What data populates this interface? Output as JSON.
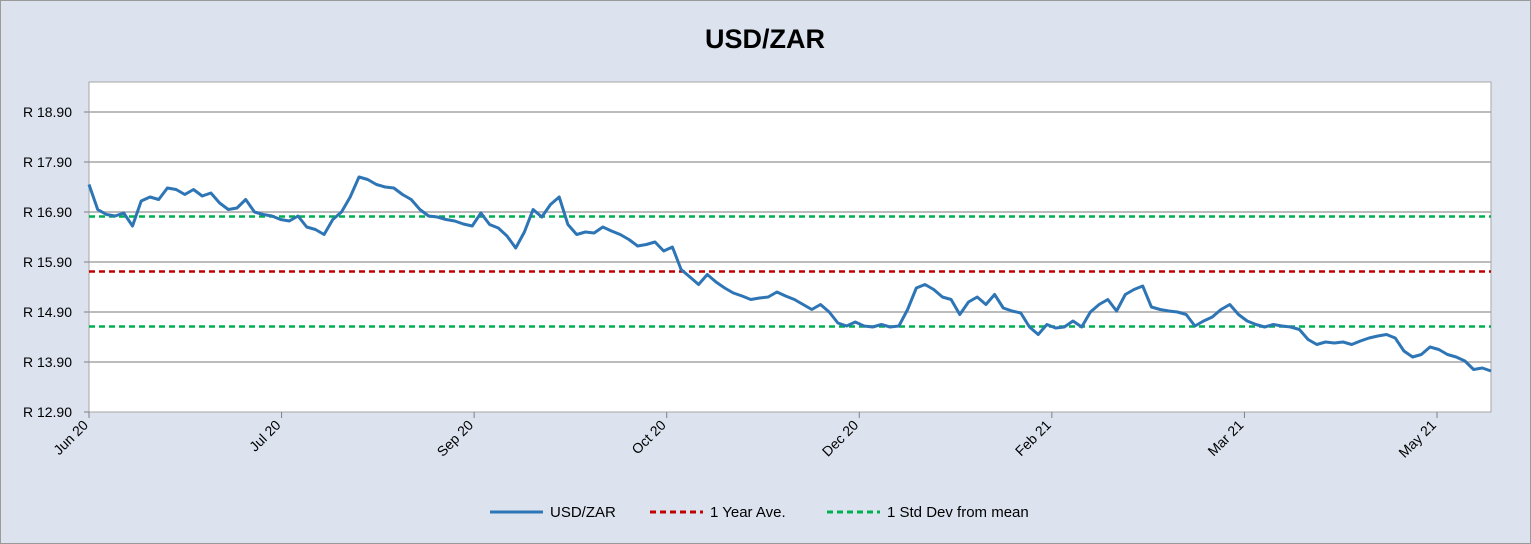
{
  "chart_data": {
    "type": "line",
    "title": "USD/ZAR",
    "xlabel": "",
    "ylabel": "",
    "ylim": [
      12.9,
      18.9
    ],
    "yticks": [
      "R 12.90",
      "R 13.90",
      "R 14.90",
      "R 15.90",
      "R 16.90",
      "R 17.90",
      "R 18.90"
    ],
    "ytick_values": [
      12.9,
      13.9,
      14.9,
      15.9,
      16.9,
      17.9,
      18.9
    ],
    "xticks": [
      "Jun 20",
      "Jul 20",
      "Sep 20",
      "Oct 20",
      "Dec 20",
      "Feb 21",
      "Mar 21",
      "May 21"
    ],
    "grid": "horizontal",
    "legend_position": "bottom",
    "series": [
      {
        "name": "USD/ZAR",
        "color": "#2e75b6",
        "style": "solid",
        "values": [
          17.45,
          16.95,
          16.85,
          16.82,
          16.88,
          16.62,
          17.12,
          17.2,
          17.15,
          17.38,
          17.35,
          17.25,
          17.35,
          17.22,
          17.28,
          17.08,
          16.95,
          16.98,
          17.15,
          16.9,
          16.85,
          16.82,
          16.75,
          16.72,
          16.82,
          16.6,
          16.55,
          16.45,
          16.75,
          16.9,
          17.2,
          17.6,
          17.55,
          17.45,
          17.4,
          17.38,
          17.25,
          17.15,
          16.95,
          16.82,
          16.8,
          16.75,
          16.72,
          16.66,
          16.62,
          16.88,
          16.65,
          16.58,
          16.42,
          16.18,
          16.5,
          16.95,
          16.8,
          17.05,
          17.2,
          16.65,
          16.45,
          16.5,
          16.48,
          16.6,
          16.52,
          16.45,
          16.35,
          16.22,
          16.25,
          16.3,
          16.12,
          16.2,
          15.75,
          15.6,
          15.45,
          15.65,
          15.5,
          15.38,
          15.28,
          15.22,
          15.15,
          15.18,
          15.2,
          15.3,
          15.22,
          15.15,
          15.05,
          14.95,
          15.05,
          14.9,
          14.68,
          14.62,
          14.7,
          14.62,
          14.6,
          14.65,
          14.6,
          14.62,
          14.95,
          15.38,
          15.45,
          15.35,
          15.2,
          15.15,
          14.85,
          15.1,
          15.2,
          15.05,
          15.25,
          14.98,
          14.92,
          14.88,
          14.6,
          14.45,
          14.65,
          14.58,
          14.6,
          14.72,
          14.6,
          14.9,
          15.05,
          15.15,
          14.92,
          15.25,
          15.35,
          15.42,
          15.0,
          14.95,
          14.92,
          14.9,
          14.85,
          14.62,
          14.72,
          14.8,
          14.95,
          15.05,
          14.85,
          14.72,
          14.65,
          14.6,
          14.65,
          14.62,
          14.6,
          14.55,
          14.35,
          14.25,
          14.3,
          14.28,
          14.3,
          14.25,
          14.32,
          14.38,
          14.42,
          14.45,
          14.38,
          14.12,
          14.0,
          14.05,
          14.2,
          14.15,
          14.05,
          14.0,
          13.92,
          13.75,
          13.78,
          13.72
        ],
        "x_start": "Jun 20"
      },
      {
        "name": "1 Year Ave.",
        "color": "#c00000",
        "style": "dashed",
        "value": 15.71
      },
      {
        "name": "1 Std Dev from mean",
        "color": "#00b050",
        "style": "dashed",
        "values_multi": [
          16.81,
          14.61
        ]
      }
    ]
  }
}
